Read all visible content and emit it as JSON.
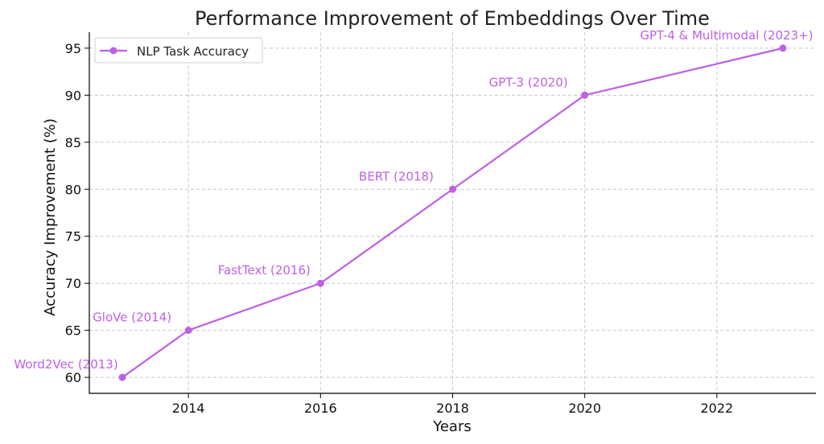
{
  "chart_data": {
    "type": "line",
    "title": "Performance Improvement of Embeddings Over Time",
    "xlabel": "Years",
    "ylabel": "Accuracy Improvement (%)",
    "xlim": [
      2012.5,
      2023.5
    ],
    "ylim": [
      58.3,
      96.7
    ],
    "xticks": [
      2014,
      2016,
      2018,
      2020,
      2022
    ],
    "yticks": [
      60,
      65,
      70,
      75,
      80,
      85,
      90,
      95
    ],
    "grid": true,
    "legend_position": "top-left",
    "series": [
      {
        "name": "NLP Task Accuracy",
        "color": "#bf5fe6",
        "marker": "circle",
        "x": [
          2013,
          2014,
          2016,
          2018,
          2020,
          2023
        ],
        "y": [
          60,
          65,
          70,
          80,
          90,
          95
        ]
      }
    ],
    "annotations": [
      {
        "text": "Word2Vec (2013)",
        "x": 2013,
        "y": 60
      },
      {
        "text": "GloVe (2014)",
        "x": 2014,
        "y": 65
      },
      {
        "text": "FastText (2016)",
        "x": 2016,
        "y": 70
      },
      {
        "text": "BERT (2018)",
        "x": 2018,
        "y": 80
      },
      {
        "text": "GPT-3 (2020)",
        "x": 2020,
        "y": 90
      },
      {
        "text": "GPT-4 & Multimodal (2023+)",
        "x": 2023,
        "y": 95
      }
    ]
  }
}
